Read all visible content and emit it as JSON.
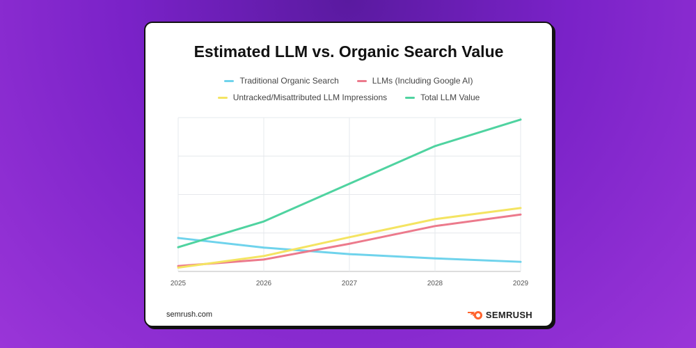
{
  "chart_data": {
    "type": "line",
    "title": "Estimated LLM vs. Organic Search Value",
    "xlabel": "",
    "ylabel": "",
    "x": [
      "2025",
      "2026",
      "2027",
      "2028",
      "2029"
    ],
    "ylim": [
      0,
      4
    ],
    "y_tick_labels_shown": false,
    "grid": true,
    "legend_placement": "top",
    "series": [
      {
        "name": "Traditional Organic Search",
        "color": "#6fd3ec",
        "values": [
          0.87,
          0.62,
          0.45,
          0.34,
          0.25
        ]
      },
      {
        "name": "LLMs (Including Google AI)",
        "color": "#ec7a8c",
        "values": [
          0.14,
          0.31,
          0.72,
          1.18,
          1.48
        ]
      },
      {
        "name": "Untracked/Misattributed LLM Impressions",
        "color": "#f4e462",
        "values": [
          0.1,
          0.4,
          0.89,
          1.36,
          1.65
        ]
      },
      {
        "name": "Total LLM Value",
        "color": "#4fd3a0",
        "values": [
          0.63,
          1.3,
          2.28,
          3.26,
          3.95
        ]
      }
    ]
  },
  "footer": {
    "source": "semrush.com",
    "logo": "SEMRUSH"
  }
}
